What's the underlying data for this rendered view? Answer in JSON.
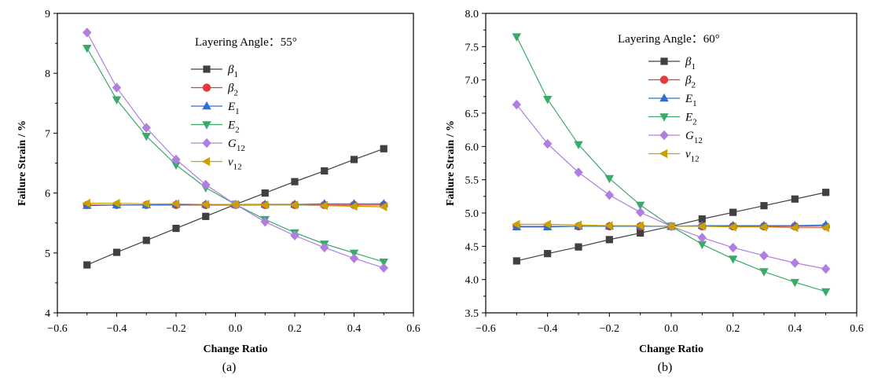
{
  "chart_data": [
    {
      "type": "line",
      "panel_label": "(a)",
      "annotation": "Layering Angle：55°",
      "xlabel": "Change Ratio",
      "ylabel": "Failure Strain / %",
      "xlim": [
        -0.6,
        0.6
      ],
      "ylim": [
        4,
        9
      ],
      "xticks": [
        -0.6,
        -0.4,
        -0.2,
        0.0,
        0.2,
        0.4,
        0.6
      ],
      "xtick_labels": [
        "−0.6",
        "−0.4",
        "−0.2",
        "0.0",
        "0.2",
        "0.4",
        "0.6"
      ],
      "yticks": [
        4,
        5,
        6,
        7,
        8,
        9
      ],
      "ytick_labels": [
        "4",
        "5",
        "6",
        "7",
        "8",
        "9"
      ],
      "legend_position": "top-center",
      "x": [
        -0.5,
        -0.4,
        -0.3,
        -0.2,
        -0.1,
        0.0,
        0.1,
        0.2,
        0.3,
        0.4,
        0.5
      ],
      "series": [
        {
          "name": "β",
          "sub": "1",
          "color": "#404040",
          "marker": "square",
          "values": [
            4.8,
            5.01,
            5.21,
            5.41,
            5.61,
            5.81,
            6.0,
            6.19,
            6.37,
            6.56,
            6.74
          ]
        },
        {
          "name": "β",
          "sub": "2",
          "color": "#e8393a",
          "marker": "circle",
          "values": [
            5.8,
            5.8,
            5.8,
            5.8,
            5.8,
            5.8,
            5.8,
            5.8,
            5.8,
            5.8,
            5.8
          ]
        },
        {
          "name": "E",
          "sub": "1",
          "color": "#2f6fd0",
          "marker": "triangle-up",
          "values": [
            5.79,
            5.8,
            5.8,
            5.81,
            5.81,
            5.81,
            5.81,
            5.81,
            5.82,
            5.82,
            5.82
          ]
        },
        {
          "name": "E",
          "sub": "2",
          "color": "#3aaa6a",
          "marker": "triangle-down",
          "values": [
            8.42,
            7.56,
            6.95,
            6.47,
            6.09,
            5.81,
            5.56,
            5.34,
            5.15,
            5.0,
            4.85
          ]
        },
        {
          "name": "G",
          "sub": "12",
          "color": "#b07ee0",
          "marker": "diamond",
          "values": [
            8.68,
            7.76,
            7.09,
            6.56,
            6.14,
            5.81,
            5.52,
            5.29,
            5.09,
            4.91,
            4.75
          ]
        },
        {
          "name": "ν",
          "sub": "12",
          "color": "#c9a100",
          "marker": "triangle-left",
          "values": [
            5.83,
            5.83,
            5.82,
            5.82,
            5.81,
            5.81,
            5.8,
            5.8,
            5.79,
            5.78,
            5.77
          ]
        }
      ]
    },
    {
      "type": "line",
      "panel_label": "(b)",
      "annotation": "Layering Angle：60°",
      "xlabel": "Change Ratio",
      "ylabel": "Failure Strain / %",
      "xlim": [
        -0.6,
        0.6
      ],
      "ylim": [
        3.5,
        8.0
      ],
      "xticks": [
        -0.6,
        -0.4,
        -0.2,
        0.0,
        0.2,
        0.4,
        0.6
      ],
      "xtick_labels": [
        "−0.6",
        "−0.4",
        "−0.2",
        "0.0",
        "0.2",
        "0.4",
        "0.6"
      ],
      "yticks": [
        3.5,
        4.0,
        4.5,
        5.0,
        5.5,
        6.0,
        6.5,
        7.0,
        7.5,
        8.0
      ],
      "ytick_labels": [
        "3.5",
        "4.0",
        "4.5",
        "5.0",
        "5.5",
        "6.0",
        "6.5",
        "7.0",
        "7.5",
        "8.0"
      ],
      "legend_position": "top-center",
      "x": [
        -0.5,
        -0.4,
        -0.3,
        -0.2,
        -0.1,
        0.0,
        0.1,
        0.2,
        0.3,
        0.4,
        0.5
      ],
      "series": [
        {
          "name": "β",
          "sub": "1",
          "color": "#404040",
          "marker": "square",
          "values": [
            4.28,
            4.39,
            4.49,
            4.6,
            4.7,
            4.8,
            4.91,
            5.01,
            5.11,
            5.21,
            5.31
          ]
        },
        {
          "name": "β",
          "sub": "2",
          "color": "#e8393a",
          "marker": "circle",
          "values": [
            4.8,
            4.8,
            4.8,
            4.8,
            4.8,
            4.8,
            4.8,
            4.8,
            4.8,
            4.8,
            4.8
          ]
        },
        {
          "name": "E",
          "sub": "1",
          "color": "#2f6fd0",
          "marker": "triangle-up",
          "values": [
            4.79,
            4.79,
            4.8,
            4.8,
            4.8,
            4.8,
            4.81,
            4.81,
            4.81,
            4.81,
            4.82
          ]
        },
        {
          "name": "E",
          "sub": "2",
          "color": "#3aaa6a",
          "marker": "triangle-down",
          "values": [
            7.65,
            6.71,
            6.03,
            5.52,
            5.12,
            4.8,
            4.53,
            4.31,
            4.12,
            3.96,
            3.82
          ]
        },
        {
          "name": "G",
          "sub": "12",
          "color": "#b07ee0",
          "marker": "diamond",
          "values": [
            6.63,
            6.04,
            5.61,
            5.27,
            5.01,
            4.8,
            4.63,
            4.48,
            4.36,
            4.25,
            4.16
          ]
        },
        {
          "name": "ν",
          "sub": "12",
          "color": "#c9a100",
          "marker": "triangle-left",
          "values": [
            4.83,
            4.83,
            4.82,
            4.81,
            4.81,
            4.8,
            4.8,
            4.79,
            4.79,
            4.78,
            4.78
          ]
        }
      ]
    }
  ]
}
